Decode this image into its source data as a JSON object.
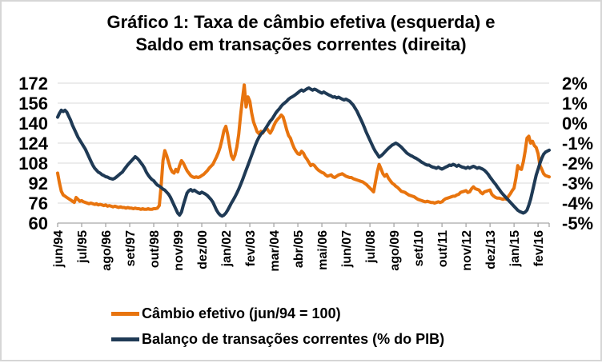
{
  "chart_data": {
    "type": "line",
    "title_line1": "Gráfico 1: Taxa de câmbio efetiva (esquerda) e",
    "title_line2": "Saldo em transações correntes (direita)",
    "x_start": "jun/94",
    "frequency": "monthly",
    "x_label_month_interval": 13,
    "x_tick_labels": [
      "jun/94",
      "jul/95",
      "ago/96",
      "set/97",
      "out/98",
      "nov/99",
      "dez/00",
      "jan/02",
      "fev/03",
      "mar/04",
      "abr/05",
      "mai/06",
      "jun/07",
      "jul/08",
      "ago/09",
      "set/10",
      "out/11",
      "nov/12",
      "dez/13",
      "jan/15",
      "fev/16"
    ],
    "left_axis": {
      "ticks": [
        172,
        156,
        140,
        124,
        108,
        92,
        76,
        60
      ],
      "min": 60,
      "max": 172
    },
    "right_axis": {
      "ticks": [
        "2%",
        "1%",
        "0%",
        "-1%",
        "-2%",
        "-3%",
        "-4%",
        "-5%"
      ],
      "min": -5,
      "max": 2
    },
    "grid_color": "#d9d9d9",
    "axis_color": "#a6a6a6",
    "legend_position": "bottom",
    "series": [
      {
        "name": "Câmbio efetivo (jun/94 = 100)",
        "axis": "left",
        "color": "#e8740e",
        "values": [
          100,
          92,
          85.5,
          82.5,
          81.5,
          80.5,
          79.5,
          78.5,
          77.5,
          76.5,
          80.5,
          79,
          77.5,
          78,
          77,
          76.5,
          76,
          75.5,
          76,
          75.5,
          75,
          75.5,
          74.5,
          75,
          74.5,
          74,
          74.5,
          73.5,
          74,
          73.5,
          73,
          73.5,
          73,
          72.5,
          73,
          72.5,
          72.5,
          72,
          72.5,
          72,
          72,
          71.5,
          72,
          71.5,
          71.5,
          71,
          71.5,
          71,
          71,
          71.5,
          71,
          71,
          71.5,
          71.5,
          72,
          74,
          90,
          110,
          118,
          114,
          109,
          104,
          101,
          100,
          103,
          101,
          106,
          110,
          108,
          105,
          102,
          100,
          98,
          97,
          96.5,
          97,
          96.5,
          97,
          98,
          99,
          100.5,
          102,
          104,
          105.5,
          107,
          110,
          113,
          116.5,
          121,
          127,
          134,
          137.5,
          131,
          122,
          114,
          111,
          114.5,
          121,
          131,
          146,
          159,
          170.5,
          153,
          161,
          157.5,
          148,
          141,
          137,
          133,
          131.5,
          133.5,
          132,
          134.5,
          136.5,
          134,
          132,
          134.5,
          138,
          141,
          143,
          144.5,
          146.5,
          145,
          140,
          134.5,
          130,
          128,
          123.5,
          120,
          117.5,
          115.5,
          115,
          117.5,
          116,
          113,
          111,
          108.5,
          106,
          107,
          106,
          104,
          102.5,
          101.5,
          100.5,
          100,
          98.5,
          97.5,
          98,
          98.5,
          97,
          96.5,
          97.5,
          98.5,
          99,
          99.5,
          98.5,
          97.5,
          97,
          96.5,
          96.5,
          95.5,
          95,
          94.5,
          94,
          93.5,
          93,
          92,
          91,
          89.5,
          88,
          86.5,
          85,
          93,
          101,
          107,
          103.5,
          99.5,
          97.5,
          99,
          96,
          94,
          92,
          91,
          89.5,
          88.5,
          87,
          85.5,
          85,
          84.5,
          83.5,
          82.5,
          82,
          81.5,
          81,
          80,
          79,
          78.5,
          78,
          77.5,
          77,
          77.5,
          77,
          76.5,
          76.5,
          76,
          76.5,
          77,
          76.5,
          77,
          78.5,
          79.5,
          80,
          80.5,
          81,
          81.5,
          81.5,
          82.5,
          83,
          84.5,
          85,
          85.5,
          86,
          84.5,
          85,
          87.5,
          89,
          87.5,
          87,
          86.5,
          84.5,
          83.5,
          85,
          85.5,
          86,
          86.5,
          83,
          81.5,
          80.5,
          80,
          80,
          79.5,
          79,
          79.5,
          79,
          81.5,
          83.5,
          86,
          88,
          96,
          106,
          103.5,
          103,
          109,
          117.5,
          128,
          129.5,
          124,
          125.5,
          122,
          120.5,
          115.5,
          106,
          103,
          99.5,
          98,
          97.5,
          97
        ]
      },
      {
        "name": "Balanço de transações correntes (% do PIB)",
        "axis": "right",
        "color": "#1f3a55",
        "values": [
          0.3,
          0.5,
          0.65,
          0.58,
          0.65,
          0.55,
          0.35,
          0.15,
          -0.1,
          -0.3,
          -0.5,
          -0.7,
          -0.85,
          -1.0,
          -1.15,
          -1.3,
          -1.5,
          -1.7,
          -1.9,
          -2.1,
          -2.25,
          -2.35,
          -2.45,
          -2.5,
          -2.58,
          -2.62,
          -2.68,
          -2.7,
          -2.75,
          -2.78,
          -2.8,
          -2.75,
          -2.68,
          -2.6,
          -2.52,
          -2.45,
          -2.32,
          -2.2,
          -2.08,
          -1.98,
          -1.88,
          -1.78,
          -1.68,
          -1.75,
          -1.85,
          -1.98,
          -2.1,
          -2.25,
          -2.45,
          -2.6,
          -2.72,
          -2.82,
          -2.88,
          -3.0,
          -3.1,
          -3.15,
          -3.22,
          -3.3,
          -3.35,
          -3.45,
          -3.55,
          -3.7,
          -3.9,
          -4.1,
          -4.3,
          -4.5,
          -4.6,
          -4.45,
          -4.1,
          -3.8,
          -3.5,
          -3.38,
          -3.32,
          -3.4,
          -3.35,
          -3.42,
          -3.48,
          -3.52,
          -3.45,
          -3.5,
          -3.55,
          -3.62,
          -3.72,
          -3.82,
          -3.95,
          -4.15,
          -4.35,
          -4.5,
          -4.6,
          -4.65,
          -4.6,
          -4.5,
          -4.35,
          -4.18,
          -4.0,
          -3.85,
          -3.68,
          -3.5,
          -3.3,
          -3.08,
          -2.85,
          -2.6,
          -2.35,
          -2.1,
          -1.85,
          -1.6,
          -1.35,
          -1.1,
          -0.88,
          -0.7,
          -0.55,
          -0.45,
          -0.35,
          -0.2,
          -0.05,
          0.1,
          0.2,
          0.35,
          0.5,
          0.62,
          0.72,
          0.85,
          0.95,
          1.02,
          1.1,
          1.2,
          1.27,
          1.32,
          1.38,
          1.45,
          1.52,
          1.6,
          1.66,
          1.6,
          1.66,
          1.72,
          1.76,
          1.7,
          1.65,
          1.7,
          1.66,
          1.6,
          1.55,
          1.5,
          1.56,
          1.5,
          1.45,
          1.4,
          1.36,
          1.3,
          1.32,
          1.26,
          1.3,
          1.25,
          1.2,
          1.16,
          1.2,
          1.15,
          1.1,
          1.0,
          0.9,
          0.75,
          0.6,
          0.4,
          0.2,
          0.0,
          -0.22,
          -0.45,
          -0.65,
          -0.85,
          -1.05,
          -1.25,
          -1.42,
          -1.55,
          -1.7,
          -1.64,
          -1.55,
          -1.45,
          -1.35,
          -1.26,
          -1.18,
          -1.1,
          -1.05,
          -1.0,
          -1.05,
          -1.12,
          -1.2,
          -1.3,
          -1.4,
          -1.5,
          -1.56,
          -1.62,
          -1.66,
          -1.72,
          -1.76,
          -1.82,
          -1.88,
          -1.95,
          -2.0,
          -2.06,
          -2.1,
          -2.1,
          -2.16,
          -2.2,
          -2.22,
          -2.26,
          -2.2,
          -2.26,
          -2.3,
          -2.25,
          -2.2,
          -2.16,
          -2.1,
          -2.12,
          -2.06,
          -2.1,
          -2.16,
          -2.1,
          -2.16,
          -2.2,
          -2.22,
          -2.26,
          -2.2,
          -2.25,
          -2.2,
          -2.16,
          -2.2,
          -2.26,
          -2.22,
          -2.26,
          -2.3,
          -2.36,
          -2.45,
          -2.56,
          -2.7,
          -2.82,
          -2.95,
          -3.06,
          -3.2,
          -3.32,
          -3.45,
          -3.56,
          -3.66,
          -3.76,
          -3.86,
          -3.96,
          -4.06,
          -4.16,
          -4.26,
          -4.36,
          -4.42,
          -4.46,
          -4.5,
          -4.45,
          -4.35,
          -4.1,
          -3.8,
          -3.4,
          -3.0,
          -2.6,
          -2.3,
          -2.0,
          -1.75,
          -1.55,
          -1.45,
          -1.4,
          -1.35
        ]
      }
    ]
  }
}
